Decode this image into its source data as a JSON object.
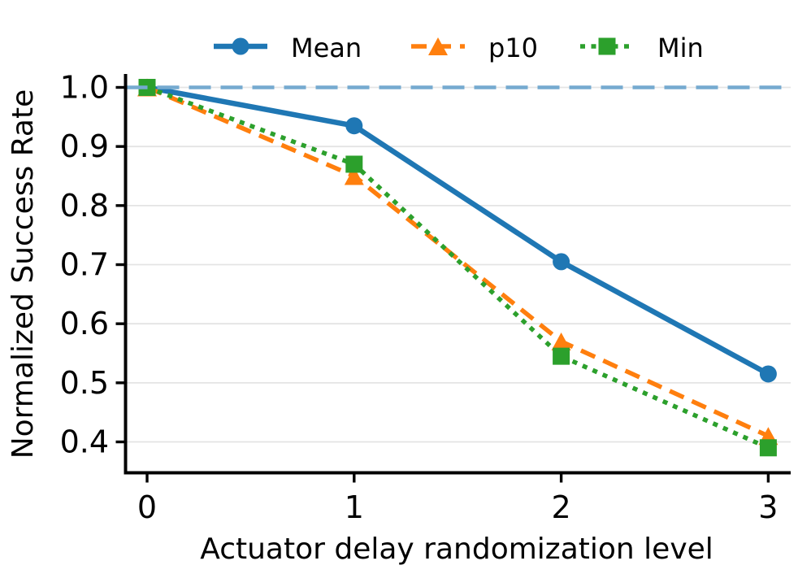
{
  "chart_data": {
    "type": "line",
    "title": "",
    "xlabel": "Actuator delay randomization level",
    "ylabel": "Normalized Success Rate",
    "x": [
      0,
      1,
      2,
      3
    ],
    "series": [
      {
        "name": "Mean",
        "values": [
          1.0,
          0.935,
          0.705,
          0.515
        ],
        "color": "#1f77b4",
        "line_style": "solid",
        "marker": "circle"
      },
      {
        "name": "p10",
        "values": [
          1.0,
          0.85,
          0.57,
          0.41
        ],
        "color": "#ff7f0e",
        "line_style": "dashed",
        "marker": "triangle"
      },
      {
        "name": "Min",
        "values": [
          1.0,
          0.87,
          0.545,
          0.39
        ],
        "color": "#2ca02c",
        "line_style": "dotted",
        "marker": "square"
      }
    ],
    "reference_line": {
      "y": 1.0,
      "color": "#75aad0",
      "style": "dashed"
    },
    "xticks": [
      "0",
      "1",
      "2",
      "3"
    ],
    "xtick_values": [
      0,
      1,
      2,
      3
    ],
    "yticks": [
      "1.0",
      "0.9",
      "0.8",
      "0.7",
      "0.6",
      "0.5",
      "0.4"
    ],
    "ytick_values": [
      1.0,
      0.9,
      0.8,
      0.7,
      0.6,
      0.5,
      0.4
    ],
    "xlim": [
      -0.11,
      3.11
    ],
    "ylim": [
      0.345,
      1.03
    ],
    "grid": "horizontal",
    "grid_color": "#e4e4e4",
    "axis_color": "#000000",
    "legend": {
      "position": "top",
      "entries": [
        "Mean",
        "p10",
        "Min"
      ]
    }
  }
}
